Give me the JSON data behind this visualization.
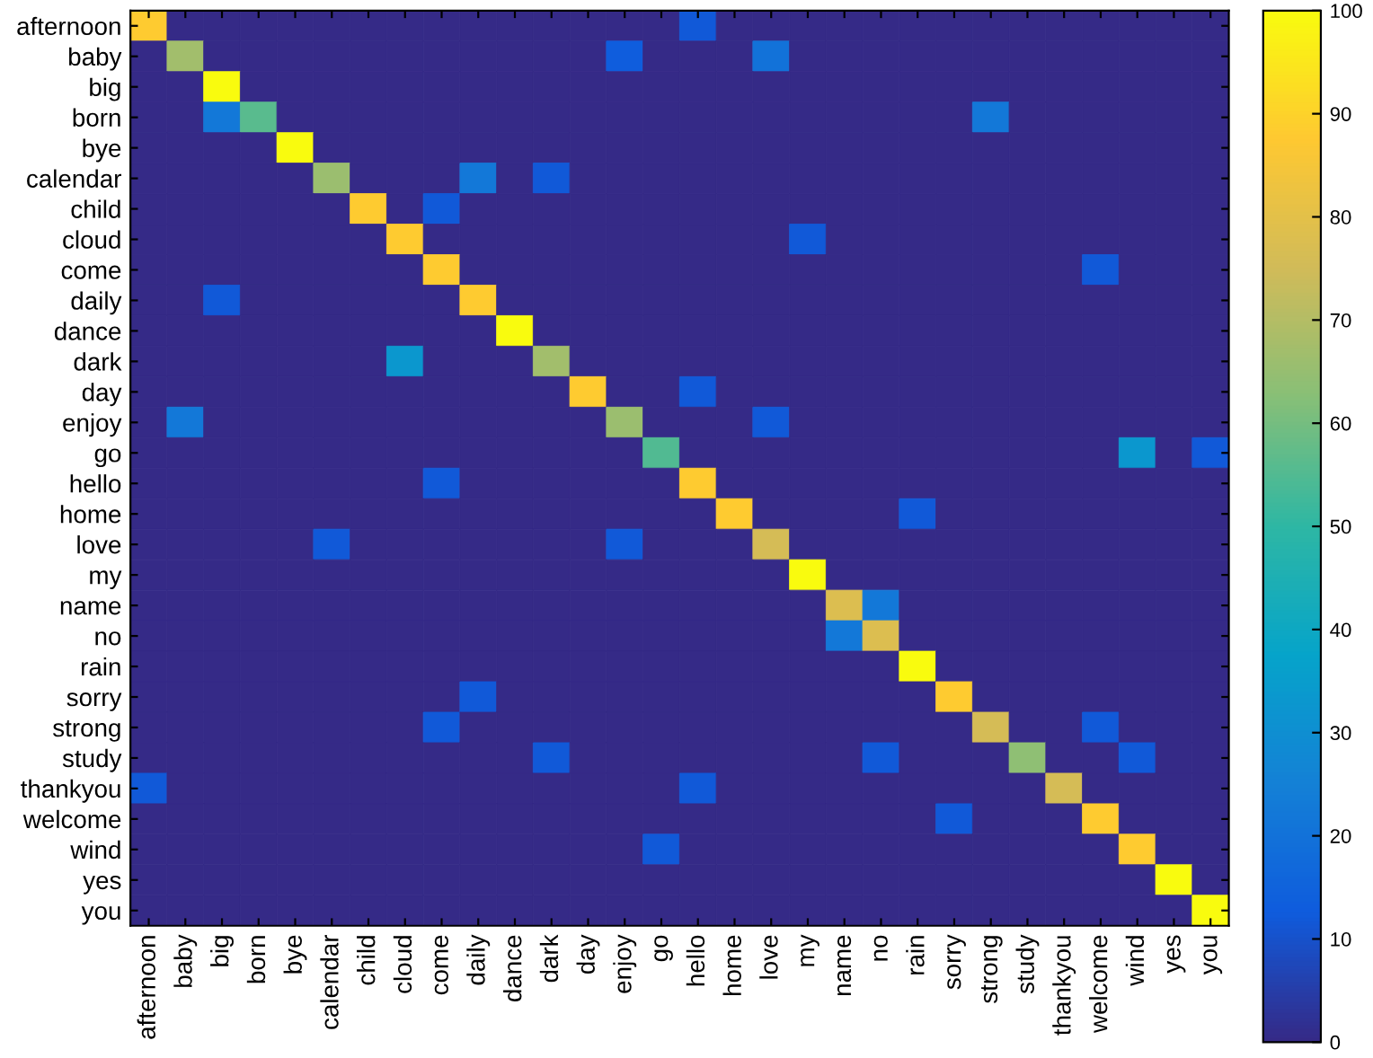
{
  "chart_data": {
    "type": "heatmap",
    "categories": [
      "afternoon",
      "baby",
      "big",
      "born",
      "bye",
      "calendar",
      "child",
      "cloud",
      "come",
      "daily",
      "dance",
      "dark",
      "day",
      "enjoy",
      "go",
      "hello",
      "home",
      "love",
      "my",
      "name",
      "no",
      "rain",
      "sorry",
      "strong",
      "study",
      "thankyou",
      "welcome",
      "wind",
      "yes",
      "you"
    ],
    "y_categories": [
      "afternoon",
      "baby",
      "big",
      "born",
      "bye",
      "calendar",
      "child",
      "cloud",
      "come",
      "daily",
      "dance",
      "dark",
      "day",
      "enjoy",
      "go",
      "hello",
      "home",
      "love",
      "my",
      "name",
      "no",
      "rain",
      "sorry",
      "strong",
      "study",
      "thankyou",
      "welcome",
      "wind",
      "yes",
      "you"
    ],
    "cells": [
      [
        88,
        0,
        0,
        0,
        0,
        0,
        0,
        0,
        0,
        0,
        0,
        0,
        0,
        0,
        0,
        12,
        0,
        0,
        0,
        0,
        0,
        0,
        0,
        0,
        0,
        0,
        0,
        0,
        0,
        0
      ],
      [
        0,
        67,
        0,
        0,
        0,
        0,
        0,
        0,
        0,
        0,
        0,
        0,
        0,
        13,
        0,
        0,
        0,
        20,
        0,
        0,
        0,
        0,
        0,
        0,
        0,
        0,
        0,
        0,
        0,
        0
      ],
      [
        0,
        0,
        100,
        0,
        0,
        0,
        0,
        0,
        0,
        0,
        0,
        0,
        0,
        0,
        0,
        0,
        0,
        0,
        0,
        0,
        0,
        0,
        0,
        0,
        0,
        0,
        0,
        0,
        0,
        0
      ],
      [
        0,
        0,
        22,
        56,
        0,
        0,
        0,
        0,
        0,
        0,
        0,
        0,
        0,
        0,
        0,
        0,
        0,
        0,
        0,
        0,
        0,
        0,
        0,
        22,
        0,
        0,
        0,
        0,
        0,
        0
      ],
      [
        0,
        0,
        0,
        0,
        100,
        0,
        0,
        0,
        0,
        0,
        0,
        0,
        0,
        0,
        0,
        0,
        0,
        0,
        0,
        0,
        0,
        0,
        0,
        0,
        0,
        0,
        0,
        0,
        0,
        0
      ],
      [
        0,
        0,
        0,
        0,
        0,
        66,
        0,
        0,
        0,
        22,
        0,
        12,
        0,
        0,
        0,
        0,
        0,
        0,
        0,
        0,
        0,
        0,
        0,
        0,
        0,
        0,
        0,
        0,
        0,
        0
      ],
      [
        0,
        0,
        0,
        0,
        0,
        0,
        88,
        0,
        12,
        0,
        0,
        0,
        0,
        0,
        0,
        0,
        0,
        0,
        0,
        0,
        0,
        0,
        0,
        0,
        0,
        0,
        0,
        0,
        0,
        0
      ],
      [
        0,
        0,
        0,
        0,
        0,
        0,
        0,
        88,
        0,
        0,
        0,
        0,
        0,
        0,
        0,
        0,
        0,
        0,
        12,
        0,
        0,
        0,
        0,
        0,
        0,
        0,
        0,
        0,
        0,
        0
      ],
      [
        0,
        0,
        0,
        0,
        0,
        0,
        0,
        0,
        88,
        0,
        0,
        0,
        0,
        0,
        0,
        0,
        0,
        0,
        0,
        0,
        0,
        0,
        0,
        0,
        0,
        0,
        12,
        0,
        0,
        0
      ],
      [
        0,
        0,
        12,
        0,
        0,
        0,
        0,
        0,
        0,
        88,
        0,
        0,
        0,
        0,
        0,
        0,
        0,
        0,
        0,
        0,
        0,
        0,
        0,
        0,
        0,
        0,
        0,
        0,
        0,
        0
      ],
      [
        0,
        0,
        0,
        0,
        0,
        0,
        0,
        0,
        0,
        0,
        100,
        0,
        0,
        0,
        0,
        0,
        0,
        0,
        0,
        0,
        0,
        0,
        0,
        0,
        0,
        0,
        0,
        0,
        0,
        0
      ],
      [
        0,
        0,
        0,
        0,
        0,
        0,
        0,
        33,
        0,
        0,
        0,
        67,
        0,
        0,
        0,
        0,
        0,
        0,
        0,
        0,
        0,
        0,
        0,
        0,
        0,
        0,
        0,
        0,
        0,
        0
      ],
      [
        0,
        0,
        0,
        0,
        0,
        0,
        0,
        0,
        0,
        0,
        0,
        0,
        88,
        0,
        0,
        12,
        0,
        0,
        0,
        0,
        0,
        0,
        0,
        0,
        0,
        0,
        0,
        0,
        0,
        0
      ],
      [
        0,
        22,
        0,
        0,
        0,
        0,
        0,
        0,
        0,
        0,
        0,
        0,
        0,
        66,
        0,
        0,
        0,
        12,
        0,
        0,
        0,
        0,
        0,
        0,
        0,
        0,
        0,
        0,
        0,
        0
      ],
      [
        0,
        0,
        0,
        0,
        0,
        0,
        0,
        0,
        0,
        0,
        0,
        0,
        0,
        0,
        55,
        0,
        0,
        0,
        0,
        0,
        0,
        0,
        0,
        0,
        0,
        0,
        0,
        33,
        0,
        12
      ],
      [
        0,
        0,
        0,
        0,
        0,
        0,
        0,
        0,
        12,
        0,
        0,
        0,
        0,
        0,
        0,
        88,
        0,
        0,
        0,
        0,
        0,
        0,
        0,
        0,
        0,
        0,
        0,
        0,
        0,
        0
      ],
      [
        0,
        0,
        0,
        0,
        0,
        0,
        0,
        0,
        0,
        0,
        0,
        0,
        0,
        0,
        0,
        0,
        88,
        0,
        0,
        0,
        0,
        12,
        0,
        0,
        0,
        0,
        0,
        0,
        0,
        0
      ],
      [
        0,
        0,
        0,
        0,
        0,
        12,
        0,
        0,
        0,
        0,
        0,
        0,
        0,
        12,
        0,
        0,
        0,
        76,
        0,
        0,
        0,
        0,
        0,
        0,
        0,
        0,
        0,
        0,
        0,
        0
      ],
      [
        0,
        0,
        0,
        0,
        0,
        0,
        0,
        0,
        0,
        0,
        0,
        0,
        0,
        0,
        0,
        0,
        0,
        0,
        100,
        0,
        0,
        0,
        0,
        0,
        0,
        0,
        0,
        0,
        0,
        0
      ],
      [
        0,
        0,
        0,
        0,
        0,
        0,
        0,
        0,
        0,
        0,
        0,
        0,
        0,
        0,
        0,
        0,
        0,
        0,
        0,
        78,
        22,
        0,
        0,
        0,
        0,
        0,
        0,
        0,
        0,
        0
      ],
      [
        0,
        0,
        0,
        0,
        0,
        0,
        0,
        0,
        0,
        0,
        0,
        0,
        0,
        0,
        0,
        0,
        0,
        0,
        0,
        22,
        78,
        0,
        0,
        0,
        0,
        0,
        0,
        0,
        0,
        0
      ],
      [
        0,
        0,
        0,
        0,
        0,
        0,
        0,
        0,
        0,
        0,
        0,
        0,
        0,
        0,
        0,
        0,
        0,
        0,
        0,
        0,
        0,
        100,
        0,
        0,
        0,
        0,
        0,
        0,
        0,
        0
      ],
      [
        0,
        0,
        0,
        0,
        0,
        0,
        0,
        0,
        0,
        12,
        0,
        0,
        0,
        0,
        0,
        0,
        0,
        0,
        0,
        0,
        0,
        0,
        88,
        0,
        0,
        0,
        0,
        0,
        0,
        0
      ],
      [
        0,
        0,
        0,
        0,
        0,
        0,
        0,
        0,
        12,
        0,
        0,
        0,
        0,
        0,
        0,
        0,
        0,
        0,
        0,
        0,
        0,
        0,
        0,
        76,
        0,
        0,
        12,
        0,
        0,
        0
      ],
      [
        0,
        0,
        0,
        0,
        0,
        0,
        0,
        0,
        0,
        0,
        0,
        12,
        0,
        0,
        0,
        0,
        0,
        0,
        0,
        0,
        12,
        0,
        0,
        0,
        64,
        0,
        0,
        12,
        0,
        0
      ],
      [
        12,
        0,
        0,
        0,
        0,
        0,
        0,
        0,
        0,
        0,
        0,
        0,
        0,
        0,
        0,
        12,
        0,
        0,
        0,
        0,
        0,
        0,
        0,
        0,
        0,
        76,
        0,
        0,
        0,
        0
      ],
      [
        0,
        0,
        0,
        0,
        0,
        0,
        0,
        0,
        0,
        0,
        0,
        0,
        0,
        0,
        0,
        0,
        0,
        0,
        0,
        0,
        0,
        0,
        12,
        0,
        0,
        0,
        88,
        0,
        0,
        0
      ],
      [
        0,
        0,
        0,
        0,
        0,
        0,
        0,
        0,
        0,
        0,
        0,
        0,
        0,
        0,
        12,
        0,
        0,
        0,
        0,
        0,
        0,
        0,
        0,
        0,
        0,
        0,
        0,
        88,
        0,
        0
      ],
      [
        0,
        0,
        0,
        0,
        0,
        0,
        0,
        0,
        0,
        0,
        0,
        0,
        0,
        0,
        0,
        0,
        0,
        0,
        0,
        0,
        0,
        0,
        0,
        0,
        0,
        0,
        0,
        0,
        100,
        0
      ],
      [
        0,
        0,
        0,
        0,
        0,
        0,
        0,
        0,
        0,
        0,
        0,
        0,
        0,
        0,
        0,
        0,
        0,
        0,
        0,
        0,
        0,
        0,
        0,
        0,
        0,
        0,
        0,
        0,
        0,
        100
      ]
    ],
    "clim": [
      0,
      100
    ],
    "cticks": [
      0,
      10,
      20,
      30,
      40,
      50,
      60,
      70,
      80,
      90,
      100
    ]
  }
}
